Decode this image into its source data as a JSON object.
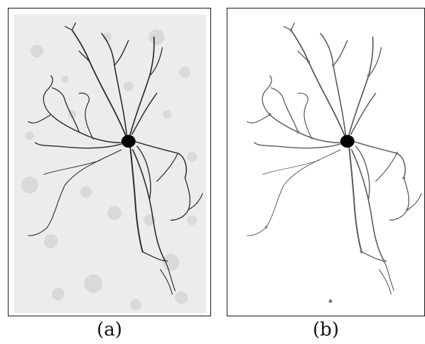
{
  "panels": [
    {
      "id": "a",
      "caption": "(a)",
      "description_kind": "raw-microscopy",
      "background_color": "#eeeeee",
      "neurite_color": "#2b2b2b",
      "soma_color": "#000000"
    },
    {
      "id": "b",
      "caption": "(b)",
      "description_kind": "segmented",
      "background_color": "#ffffff",
      "neurite_color": "#5a5a5a",
      "soma_color": "#000000"
    }
  ]
}
